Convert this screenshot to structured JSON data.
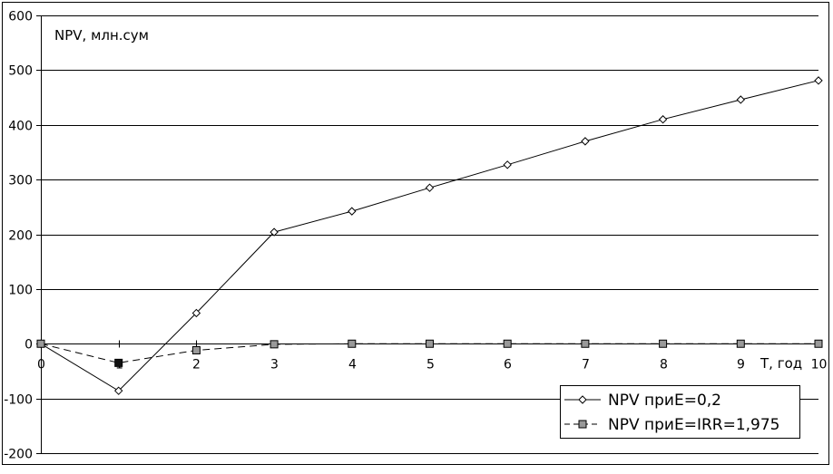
{
  "chart_data": {
    "type": "line",
    "title": "",
    "ylabel": "NPV, млн.сум",
    "xlabel": "T, год",
    "x": [
      0,
      1,
      2,
      3,
      4,
      5,
      6,
      7,
      8,
      9,
      10
    ],
    "xlim": [
      0,
      10
    ],
    "ylim": [
      -200,
      600
    ],
    "yticks": [
      -200,
      -100,
      0,
      100,
      200,
      300,
      400,
      500,
      600
    ],
    "grid": "horizontal",
    "legend_position": "bottom-right",
    "series": [
      {
        "name": "NPV приЕ=0,2",
        "style": "solid",
        "marker": "diamond-open",
        "color": "#000000",
        "values": [
          0,
          -86,
          56,
          204,
          242,
          285,
          327,
          370,
          410,
          446,
          481
        ]
      },
      {
        "name": "NPV приЕ=IRR=1,975",
        "style": "dashed",
        "marker": "square-gray",
        "color": "#000000",
        "marker_color": "#999999",
        "values": [
          0,
          -35,
          -12,
          -1,
          0,
          0,
          0,
          0,
          0,
          0,
          0
        ]
      }
    ]
  }
}
